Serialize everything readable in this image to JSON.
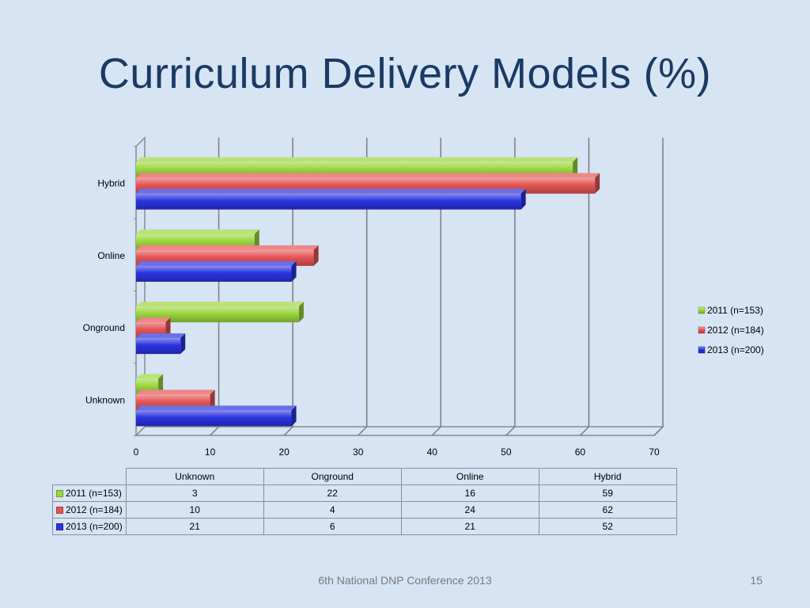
{
  "slide": {
    "title": "Curriculum Delivery Models (%)",
    "footer": "6th National DNP Conference  2013",
    "page_number": "15"
  },
  "colors": {
    "2011": "#9bd63c",
    "2012": "#e55454",
    "2013": "#2a33e0"
  },
  "chart_data": {
    "type": "bar",
    "orientation": "horizontal",
    "title": "",
    "xlabel": "",
    "ylabel": "",
    "categories": [
      "Hybrid",
      "Online",
      "Onground",
      "Unknown"
    ],
    "series": [
      {
        "name": "2011 (n=153)",
        "key": "2011",
        "values": [
          59,
          16,
          22,
          3
        ]
      },
      {
        "name": "2012 (n=184)",
        "key": "2012",
        "values": [
          62,
          24,
          4,
          10
        ]
      },
      {
        "name": "2013 (n=200)",
        "key": "2013",
        "values": [
          52,
          21,
          6,
          21
        ]
      }
    ],
    "xlim": [
      0,
      70
    ],
    "xticks": [
      "0",
      "10",
      "20",
      "30",
      "40",
      "50",
      "60",
      "70"
    ],
    "grid": true,
    "legend": "right",
    "style": "3d"
  },
  "table": {
    "columns": [
      "Unknown",
      "Onground",
      "Online",
      "Hybrid"
    ],
    "rows": [
      {
        "label": "2011 (n=153)",
        "key": "2011",
        "values": [
          "3",
          "22",
          "16",
          "59"
        ]
      },
      {
        "label": "2012 (n=184)",
        "key": "2012",
        "values": [
          "10",
          "4",
          "24",
          "62"
        ]
      },
      {
        "label": "2013 (n=200)",
        "key": "2013",
        "values": [
          "21",
          "6",
          "21",
          "52"
        ]
      }
    ]
  }
}
